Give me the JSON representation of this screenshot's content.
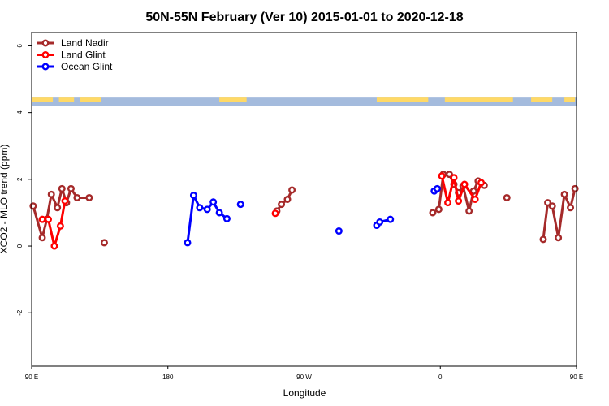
{
  "chart_data": {
    "type": "line",
    "title": "50N-55N February (Ver 10)   2015-01-01 to 2020-12-18",
    "xlabel": "Longitude",
    "ylabel": "XCO2 - MLO trend (ppm)",
    "xlim": [
      90,
      450
    ],
    "ylim": [
      -3.6,
      6.4
    ],
    "x_ticks": [
      {
        "value": 90,
        "label": "90 E"
      },
      {
        "value": 180,
        "label": "180"
      },
      {
        "value": 270,
        "label": "90 W"
      },
      {
        "value": 360,
        "label": "0"
      },
      {
        "value": 450,
        "label": "90 E"
      }
    ],
    "y_ticks": [
      -2,
      0,
      2,
      4,
      6
    ],
    "legend_position": "top-left",
    "series": [
      {
        "name": "Land Nadir",
        "color": "#A52A2A",
        "segments": [
          [
            [
              91,
              1.2
            ],
            [
              97,
              0.25
            ],
            [
              100,
              0.8
            ],
            [
              103,
              1.55
            ],
            [
              107,
              1.15
            ],
            [
              110,
              1.72
            ],
            [
              113,
              1.3
            ],
            [
              116,
              1.72
            ],
            [
              120,
              1.45
            ],
            [
              128,
              1.45
            ]
          ],
          [
            [
              138,
              0.1
            ]
          ],
          [
            [
              252,
              1.05
            ],
            [
              255,
              1.25
            ],
            [
              259,
              1.4
            ],
            [
              262,
              1.68
            ]
          ],
          [
            [
              355,
              1.0
            ],
            [
              359,
              1.1
            ],
            [
              362,
              2.15
            ],
            [
              366,
              2.15
            ],
            [
              369,
              1.85
            ],
            [
              372,
              1.6
            ],
            [
              375,
              1.8
            ],
            [
              379,
              1.05
            ],
            [
              382,
              1.65
            ],
            [
              385,
              1.95
            ],
            [
              389,
              1.82
            ]
          ],
          [
            [
              404,
              1.45
            ]
          ],
          [
            [
              428,
              0.2
            ],
            [
              431,
              1.3
            ],
            [
              434,
              1.2
            ],
            [
              438,
              0.25
            ],
            [
              442,
              1.55
            ],
            [
              446,
              1.15
            ],
            [
              449,
              1.72
            ]
          ]
        ]
      },
      {
        "name": "Land Glint",
        "color": "#FF0000",
        "segments": [
          [
            [
              97,
              0.8
            ],
            [
              101,
              0.8
            ],
            [
              105,
              0.0
            ],
            [
              109,
              0.6
            ],
            [
              112,
              1.35
            ]
          ],
          [
            [
              251,
              0.98
            ]
          ],
          [
            [
              361,
              2.1
            ],
            [
              365,
              1.3
            ],
            [
              369,
              2.05
            ],
            [
              372,
              1.35
            ],
            [
              376,
              1.85
            ],
            [
              383,
              1.4
            ],
            [
              387,
              1.9
            ]
          ]
        ]
      },
      {
        "name": "Ocean Glint",
        "color": "#0000FF",
        "segments": [
          [
            [
              193,
              0.1
            ],
            [
              197,
              1.52
            ],
            [
              201,
              1.15
            ],
            [
              206,
              1.1
            ],
            [
              210,
              1.32
            ],
            [
              214,
              1.0
            ],
            [
              219,
              0.82
            ]
          ],
          [
            [
              228,
              1.25
            ]
          ],
          [
            [
              293,
              0.45
            ]
          ],
          [
            [
              318,
              0.62
            ],
            [
              320,
              0.72
            ],
            [
              327,
              0.8
            ]
          ],
          [
            [
              356,
              1.65
            ],
            [
              358,
              1.72
            ]
          ]
        ]
      }
    ],
    "land_mask_band": {
      "y_range": [
        4.2,
        4.45
      ],
      "land_color": "#FFD966",
      "ocean_color": "#A4BBDD"
    }
  }
}
